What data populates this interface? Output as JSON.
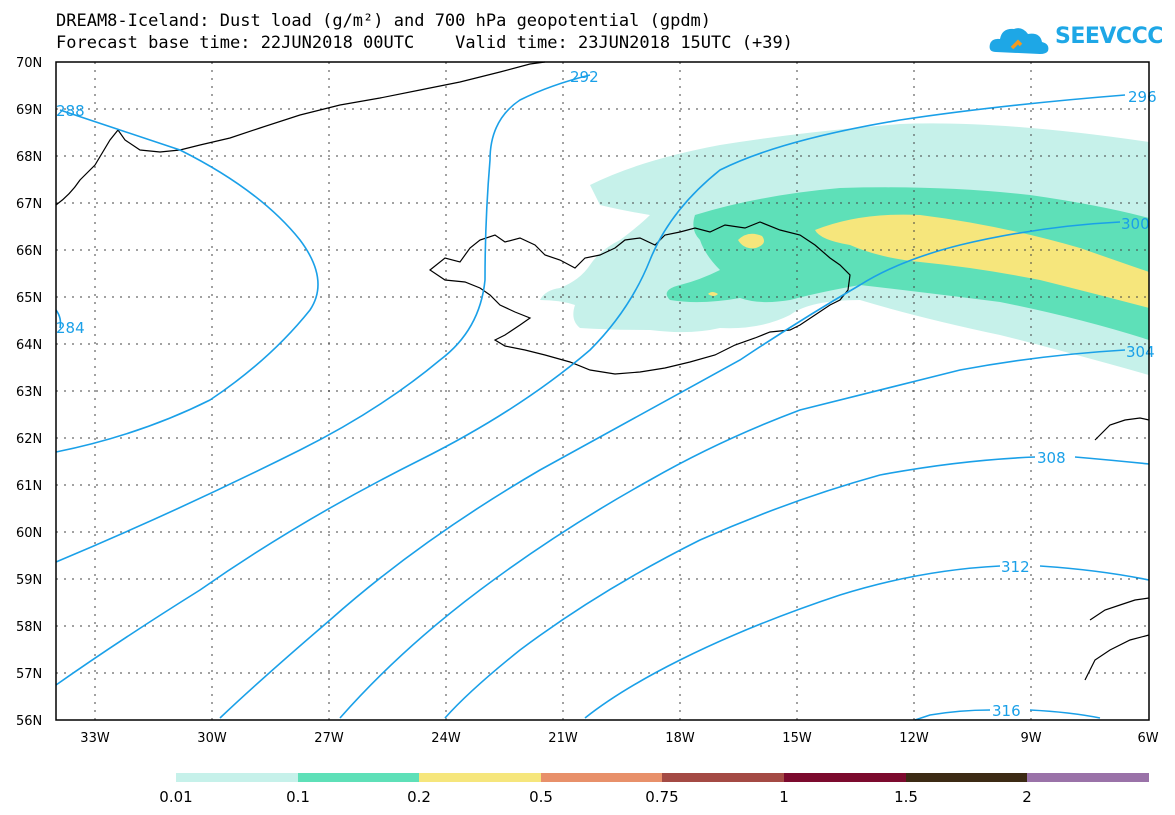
{
  "header": {
    "title_line1": "DREAM8-Iceland: Dust load (g/m²) and 700 hPa geopotential (gpdm)",
    "title_line2": "Forecast base time: 22JUN2018 00UTC    Valid time: 23JUN2018 15UTC (+39)",
    "logo_text": "SEEVCCC"
  },
  "map": {
    "lat_labels": [
      "70N",
      "69N",
      "68N",
      "67N",
      "66N",
      "65N",
      "64N",
      "63N",
      "62N",
      "61N",
      "60N",
      "59N",
      "58N",
      "57N",
      "56N"
    ],
    "lon_labels": [
      "33W",
      "30W",
      "27W",
      "24W",
      "21W",
      "18W",
      "15W",
      "12W",
      "9W",
      "6W"
    ],
    "contour_labels": [
      "288",
      "292",
      "296",
      "300",
      "304",
      "308",
      "312",
      "316",
      "284"
    ],
    "colors": {
      "contour": "#1aa0e8",
      "coast": "#000000"
    }
  },
  "colorbar": {
    "labels": [
      "0.01",
      "0.1",
      "0.2",
      "0.5",
      "0.75",
      "1",
      "1.5",
      "2"
    ],
    "colors": [
      "#c6f1ea",
      "#5ee0b8",
      "#f6e67c",
      "#e8906a",
      "#a44a44",
      "#7c0a2e",
      "#3c2a14",
      "#9a72a8"
    ]
  }
}
